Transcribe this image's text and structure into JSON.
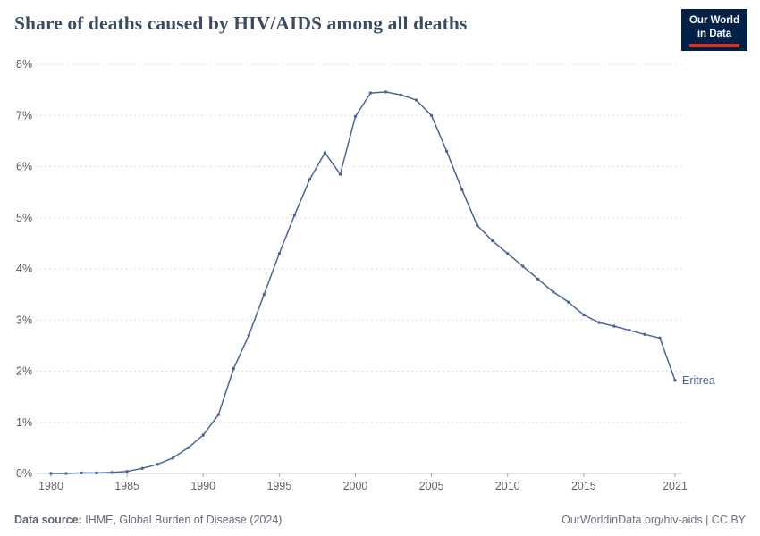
{
  "header": {
    "logo": {
      "line1": "Our World",
      "line2": "in Data"
    }
  },
  "chart_data": {
    "type": "line",
    "title": "Share of deaths caused by HIV/AIDS among all deaths",
    "entity": "Eritrea",
    "unit": "%",
    "x": [
      1980,
      1981,
      1982,
      1983,
      1984,
      1985,
      1986,
      1987,
      1988,
      1989,
      1990,
      1991,
      1992,
      1993,
      1994,
      1995,
      1996,
      1997,
      1998,
      1999,
      2000,
      2001,
      2002,
      2003,
      2004,
      2005,
      2006,
      2007,
      2008,
      2009,
      2010,
      2011,
      2012,
      2013,
      2014,
      2015,
      2016,
      2017,
      2018,
      2019,
      2020,
      2021
    ],
    "values": [
      0.0,
      0.0,
      0.01,
      0.01,
      0.02,
      0.04,
      0.1,
      0.18,
      0.3,
      0.5,
      0.75,
      1.15,
      2.05,
      2.7,
      3.5,
      4.3,
      5.05,
      5.75,
      6.27,
      5.85,
      6.98,
      7.44,
      7.46,
      7.4,
      7.3,
      7.0,
      6.3,
      5.55,
      4.85,
      4.55,
      4.3,
      4.05,
      3.8,
      3.55,
      3.35,
      3.1,
      2.95,
      2.88,
      2.8,
      2.72,
      2.65,
      1.82
    ],
    "xlim": [
      1980,
      2021
    ],
    "ylim": [
      0,
      8
    ],
    "yticks": [
      0,
      1,
      2,
      3,
      4,
      5,
      6,
      7,
      8
    ],
    "xticks": [
      1980,
      1985,
      1990,
      1995,
      2000,
      2005,
      2010,
      2015,
      2021
    ],
    "grid": "horizontal-dashed",
    "legend_position": "end-of-line-label",
    "line_color": "#4a659b",
    "grid_color": "#dddddd",
    "axis_color": "#c8c8c8",
    "tick_label_color": "#5b5b5b"
  },
  "footer": {
    "datasource_label": "Data source:",
    "datasource_value": " IHME, Global Burden of Disease (2024)",
    "link": "OurWorldinData.org/hiv-aids",
    "separator": " | ",
    "license": "CC BY"
  }
}
